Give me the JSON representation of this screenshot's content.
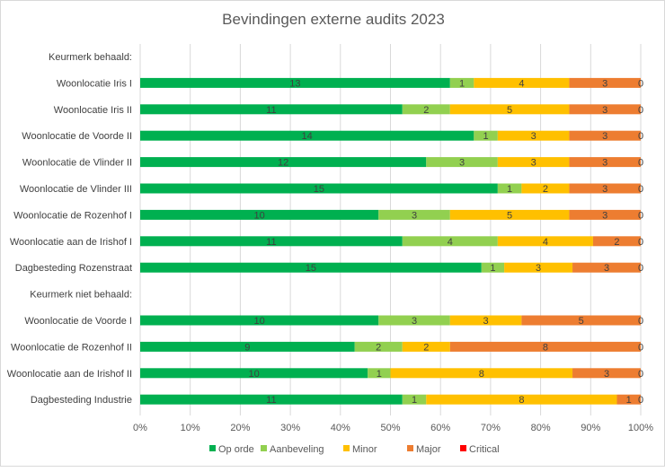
{
  "chart_data": {
    "type": "bar",
    "orientation": "horizontal",
    "stacking": "percent",
    "title": "Bevindingen externe audits 2023",
    "categories": [
      "Keurmerk behaald:",
      "Woonlocatie Iris I",
      "Woonlocatie Iris II",
      "Woonlocatie de Voorde II",
      "Woonlocatie de Vlinder II",
      "Woonlocatie de Vlinder III",
      "Woonlocatie de Rozenhof I",
      "Woonlocatie aan de Irishof I",
      "Dagbesteding Rozenstraat",
      "Keurmerk niet behaald:",
      "Woonlocatie de Voorde I",
      "Woonlocatie de Rozenhof II",
      "Woonlocatie aan de Irishof II",
      "Dagbesteding Industrie"
    ],
    "series": [
      {
        "name": "Op orde",
        "color": "#00b050",
        "values": [
          null,
          13,
          11,
          14,
          12,
          15,
          10,
          11,
          15,
          null,
          10,
          9,
          10,
          11
        ]
      },
      {
        "name": "Aanbeveling",
        "color": "#92d050",
        "values": [
          null,
          1,
          2,
          1,
          3,
          1,
          3,
          4,
          1,
          null,
          3,
          2,
          1,
          1
        ]
      },
      {
        "name": "Minor",
        "color": "#ffc000",
        "values": [
          null,
          4,
          5,
          3,
          3,
          2,
          5,
          4,
          3,
          null,
          3,
          2,
          8,
          8
        ]
      },
      {
        "name": "Major",
        "color": "#ed7d31",
        "values": [
          null,
          3,
          3,
          3,
          3,
          3,
          3,
          2,
          3,
          null,
          5,
          8,
          3,
          1
        ]
      },
      {
        "name": "Critical",
        "color": "#ff0000",
        "values": [
          null,
          0,
          0,
          0,
          0,
          0,
          0,
          0,
          0,
          null,
          0,
          0,
          0,
          0
        ]
      }
    ],
    "xlim": [
      0,
      100
    ],
    "xticks": [
      "0%",
      "10%",
      "20%",
      "30%",
      "40%",
      "50%",
      "60%",
      "70%",
      "80%",
      "90%",
      "100%"
    ],
    "grid": true,
    "data_labels": true,
    "legend": "bottom"
  }
}
